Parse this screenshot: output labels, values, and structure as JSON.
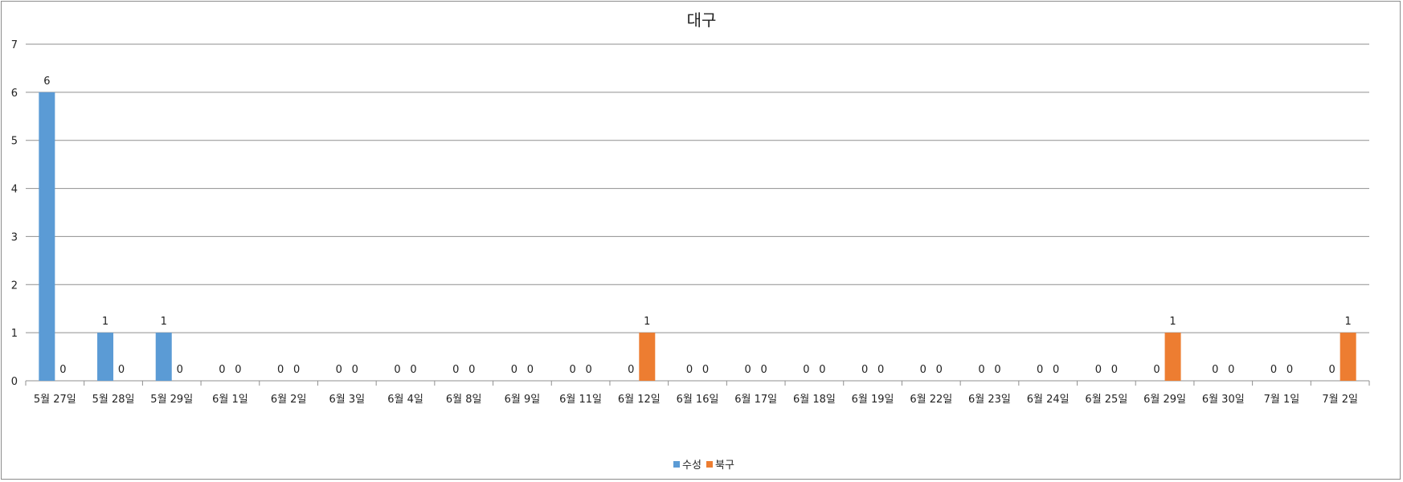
{
  "chart_data": {
    "type": "bar",
    "title": "대구",
    "xlabel": "",
    "ylabel": "",
    "ylim": [
      0,
      7
    ],
    "yticks": [
      0,
      1,
      2,
      3,
      4,
      5,
      6,
      7
    ],
    "grid": true,
    "legend_position": "bottom",
    "categories": [
      "5월 27일",
      "5월 28일",
      "5월 29일",
      "6월 1일",
      "6월 2일",
      "6월 3일",
      "6월 4일",
      "6월 8일",
      "6월 9일",
      "6월 11일",
      "6월 12일",
      "6월 16일",
      "6월 17일",
      "6월 18일",
      "6월 19일",
      "6월 22일",
      "6월 23일",
      "6월 24일",
      "6월 25일",
      "6월 29일",
      "6월 30일",
      "7월 1일",
      "7월 2일"
    ],
    "series": [
      {
        "name": "수성",
        "color": "#5b9bd5",
        "values": [
          6,
          1,
          1,
          0,
          0,
          0,
          0,
          0,
          0,
          0,
          0,
          0,
          0,
          0,
          0,
          0,
          0,
          0,
          0,
          0,
          0,
          0,
          0
        ]
      },
      {
        "name": "북구",
        "color": "#ed7d31",
        "values": [
          0,
          0,
          0,
          0,
          0,
          0,
          0,
          0,
          0,
          0,
          1,
          0,
          0,
          0,
          0,
          0,
          0,
          0,
          0,
          1,
          0,
          0,
          1
        ]
      }
    ]
  }
}
